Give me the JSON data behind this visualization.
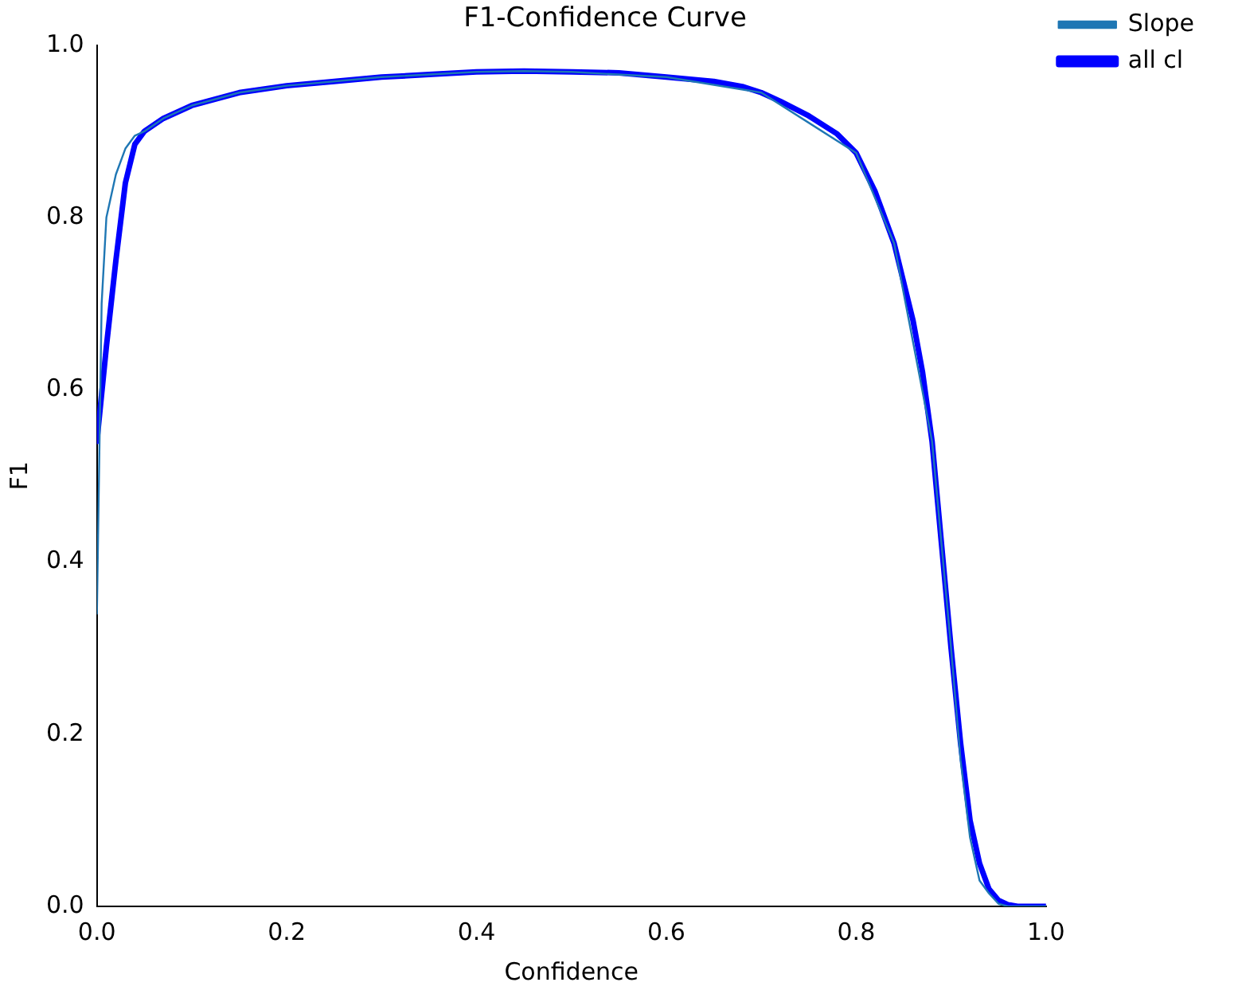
{
  "chart_data": {
    "type": "line",
    "title": "F1-Confidence Curve",
    "xlabel": "Confidence",
    "ylabel": "F1",
    "xlim": [
      0,
      1
    ],
    "ylim": [
      0,
      1
    ],
    "xticks": [
      {
        "value": 0,
        "label": "0.0"
      },
      0.2,
      0.4,
      0.6,
      0.8,
      {
        "value": 1,
        "label": "1.0"
      }
    ],
    "yticks": [
      {
        "value": 0,
        "label": "0.0"
      },
      0.2,
      0.4,
      0.6,
      0.8,
      {
        "value": 1,
        "label": "1.0"
      }
    ],
    "grid": false,
    "legend": "right",
    "marker": "none",
    "line_style": "solid",
    "series": [
      {
        "name": "Slope",
        "color": "#1f77b4",
        "x": [
          0,
          0.005,
          0.01,
          0.02,
          0.03,
          0.04,
          0.05,
          0.07,
          0.1,
          0.15,
          0.2,
          0.3,
          0.4,
          0.45,
          0.5,
          0.6,
          0.7,
          0.8,
          0.84,
          0.88,
          0.9,
          0.91,
          0.92,
          0.93,
          0.94,
          0.95,
          0.96,
          1
        ],
        "values": [
          0.34,
          0.7,
          0.8,
          0.85,
          0.88,
          0.895,
          0.9,
          0.915,
          0.93,
          0.945,
          0.953,
          0.963,
          0.969,
          0.97,
          0.969,
          0.963,
          0.945,
          0.875,
          0.77,
          0.54,
          0.3,
          0.17,
          0.08,
          0.03,
          0.015,
          0.003,
          0,
          0
        ]
      },
      {
        "name": "all cl",
        "color": "#0000ff",
        "x": [
          0,
          0.01,
          0.02,
          0.03,
          0.04,
          0.05,
          0.07,
          0.1,
          0.15,
          0.2,
          0.25,
          0.3,
          0.35,
          0.4,
          0.45,
          0.5,
          0.55,
          0.6,
          0.65,
          0.68,
          0.7,
          0.72,
          0.75,
          0.78,
          0.8,
          0.82,
          0.84,
          0.86,
          0.87,
          0.88,
          0.89,
          0.9,
          0.91,
          0.92,
          0.93,
          0.94,
          0.95,
          0.96,
          0.97,
          1
        ],
        "values": [
          0.54,
          0.65,
          0.75,
          0.84,
          0.885,
          0.9,
          0.915,
          0.93,
          0.945,
          0.953,
          0.958,
          0.963,
          0.966,
          0.969,
          0.97,
          0.969,
          0.968,
          0.963,
          0.958,
          0.952,
          0.945,
          0.935,
          0.918,
          0.897,
          0.875,
          0.83,
          0.77,
          0.68,
          0.62,
          0.54,
          0.42,
          0.3,
          0.19,
          0.1,
          0.05,
          0.02,
          0.007,
          0.002,
          0,
          0
        ]
      }
    ]
  }
}
